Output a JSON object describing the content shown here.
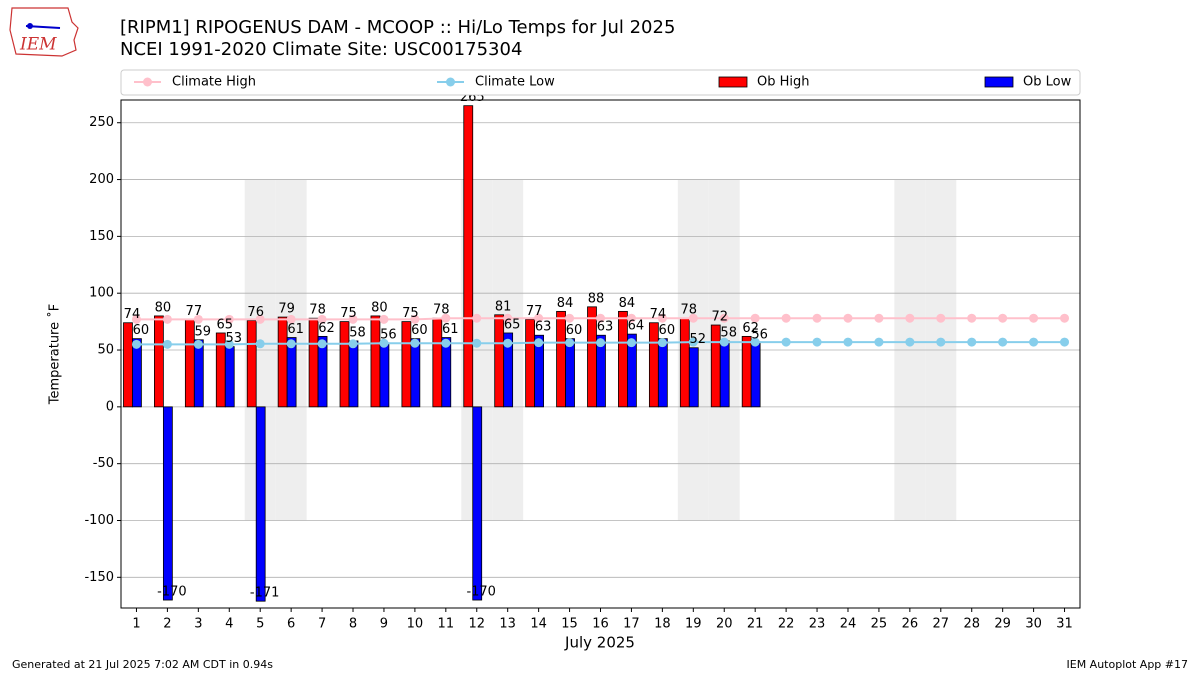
{
  "logo_text": "IEM",
  "chart_data": {
    "type": "bar",
    "title": "[RIPM1] RIPOGENUS DAM - MCOOP :: Hi/Lo Temps for Jul 2025",
    "subtitle": "NCEI 1991-2020 Climate Site: USC00175304",
    "xlabel": "July 2025",
    "ylabel": "Temperature ˚F",
    "footer_left": "Generated at 21 Jul 2025 7:02 AM CDT in 0.94s",
    "footer_right": "IEM Autoplot App #17",
    "categories": [
      "1",
      "2",
      "3",
      "4",
      "5",
      "6",
      "7",
      "8",
      "9",
      "10",
      "11",
      "12",
      "13",
      "14",
      "15",
      "16",
      "17",
      "18",
      "19",
      "20",
      "21",
      "22",
      "23",
      "24",
      "25",
      "26",
      "27",
      "28",
      "29",
      "30",
      "31"
    ],
    "series": [
      {
        "name": "Climate High",
        "type": "line",
        "color": "#ffc0cb",
        "values": [
          77,
          77,
          77,
          77,
          77,
          77,
          77,
          77,
          77,
          77,
          78,
          78,
          78,
          78,
          78,
          78,
          78,
          78,
          78,
          78,
          78,
          78,
          78,
          78,
          78,
          78,
          78,
          78,
          78,
          78,
          78
        ]
      },
      {
        "name": "Climate Low",
        "type": "line",
        "color": "#87ceeb",
        "values": [
          55,
          55,
          55,
          55,
          55.5,
          55.5,
          55.5,
          55.5,
          56,
          56,
          56,
          56,
          56,
          56.5,
          56.5,
          56.5,
          56.5,
          56.5,
          57,
          57,
          57,
          57,
          57,
          57,
          57,
          57,
          57,
          57,
          57,
          57,
          57
        ]
      },
      {
        "name": "Ob High",
        "type": "bar",
        "color": "#ff0000",
        "values": [
          74,
          80,
          77,
          65,
          76,
          79,
          78,
          75,
          80,
          75,
          78,
          265,
          81,
          77,
          84,
          88,
          84,
          74,
          78,
          72,
          62,
          null,
          null,
          null,
          null,
          null,
          null,
          null,
          null,
          null,
          null
        ]
      },
      {
        "name": "Ob Low",
        "type": "bar",
        "color": "#0000ff",
        "values": [
          60,
          -170,
          59,
          53,
          -171,
          61,
          62,
          58,
          56,
          60,
          61,
          -170,
          65,
          63,
          60,
          63,
          64,
          60,
          52,
          58,
          56,
          null,
          null,
          null,
          null,
          null,
          null,
          null,
          null,
          null,
          null
        ]
      }
    ],
    "shaded_days": [
      5,
      6,
      12,
      13,
      19,
      20,
      26,
      27
    ],
    "shade_ylim": [
      -100,
      200
    ],
    "ylim": [
      -177,
      270
    ],
    "yticks": [
      -150,
      -100,
      -50,
      0,
      50,
      100,
      150,
      200,
      250
    ],
    "grid": true,
    "legend": "top"
  }
}
